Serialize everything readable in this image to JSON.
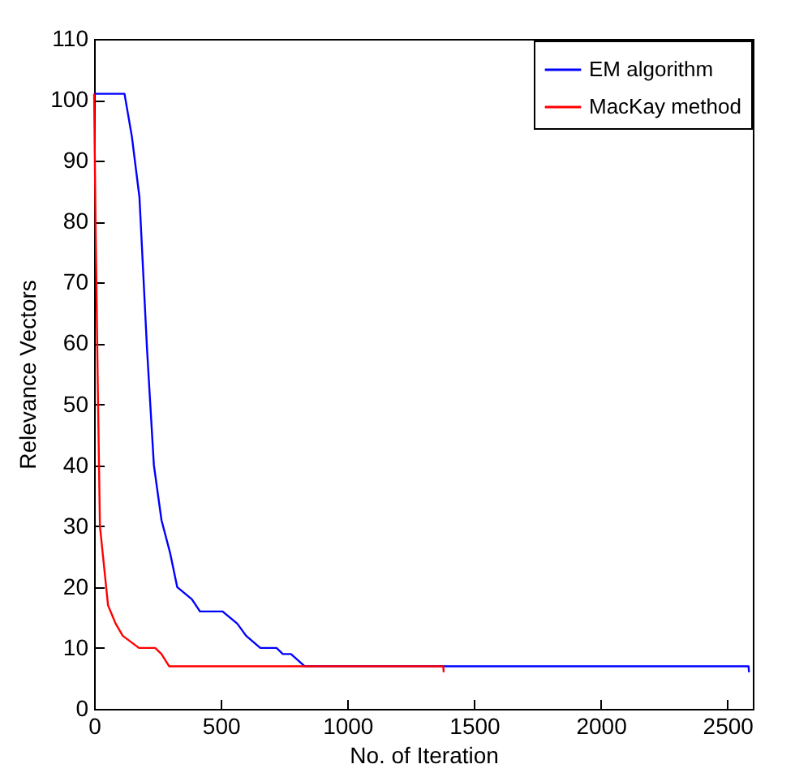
{
  "chart_data": {
    "type": "line",
    "xlabel": "No. of Iteration",
    "ylabel": "Relevance Vectors",
    "xlim": [
      0,
      2600
    ],
    "ylim": [
      0,
      110
    ],
    "xticks": [
      0,
      500,
      1000,
      1500,
      2000,
      2500
    ],
    "yticks": [
      0,
      10,
      20,
      30,
      40,
      50,
      60,
      70,
      80,
      90,
      100,
      110
    ],
    "legend": "top right",
    "grid": false,
    "marker": "none",
    "line_style": "solid",
    "series": [
      {
        "name": "EM algorithm",
        "color": "#0000ff",
        "x": [
          0,
          120,
          149,
          179,
          209,
          236,
          266,
          300,
          328,
          386,
          418,
          507,
          565,
          600,
          656,
          720,
          745,
          777,
          831,
          2583,
          2585
        ],
        "values": [
          101,
          101,
          94,
          84,
          59,
          40,
          31,
          25.6,
          20,
          18,
          16,
          16,
          14,
          12,
          10,
          10,
          9,
          9,
          7,
          7,
          6
        ]
      },
      {
        "name": "MacKay method",
        "color": "#ff0000",
        "x": [
          0,
          6,
          15,
          23,
          55,
          85,
          113,
          177,
          241,
          266,
          296,
          1378,
          1380
        ],
        "values": [
          101,
          79,
          52,
          30,
          17,
          14,
          12,
          10,
          10,
          9,
          7,
          7,
          6
        ]
      }
    ]
  }
}
